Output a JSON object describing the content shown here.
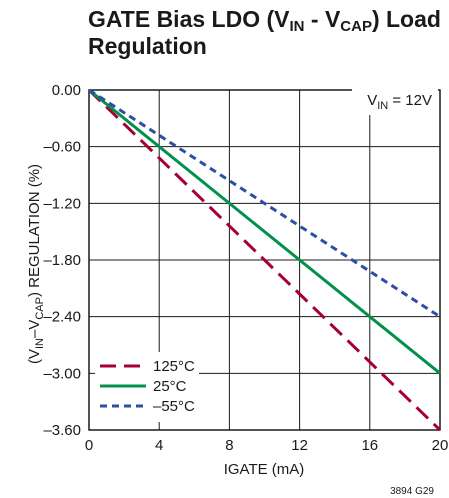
{
  "chart_data": {
    "type": "line",
    "title": {
      "pre": "GATE Bias LDO (V",
      "sub1": "IN",
      "mid": " - V",
      "sub2": "CAP",
      "post": ") Load",
      "line2": "Regulation"
    },
    "xlabel": "IGATE (mA)",
    "ylabel": {
      "pre": "(V",
      "sub1": "IN",
      "mid": "–V",
      "sub2": "CAP",
      "post": ") REGULATION (%)"
    },
    "xlim": [
      0,
      20
    ],
    "ylim": [
      -3.6,
      0
    ],
    "x_ticks": [
      0,
      4,
      8,
      12,
      16,
      20
    ],
    "x_tick_labels": [
      "0",
      "4",
      "8",
      "12",
      "16",
      "20"
    ],
    "y_ticks": [
      0,
      -0.6,
      -1.2,
      -1.8,
      -2.4,
      -3.0,
      -3.6
    ],
    "y_tick_labels": [
      "0.00",
      "–0.60",
      "–1.20",
      "–1.80",
      "–2.40",
      "–3.00",
      "–3.60"
    ],
    "grid": true,
    "legend_position": "bottom-left",
    "annotation": {
      "pre": "V",
      "sub": "IN",
      "post": " = 12V"
    },
    "part_note": "3894 G29",
    "series": [
      {
        "name": "125°C",
        "color": "#a50034",
        "dash": "long-dash",
        "x": [
          0,
          20
        ],
        "y": [
          0,
          -3.6
        ]
      },
      {
        "name": "25°C",
        "color": "#00914c",
        "dash": "solid",
        "x": [
          0,
          20
        ],
        "y": [
          0,
          -3.0
        ]
      },
      {
        "name": "–55°C",
        "color": "#2b4fa5",
        "dash": "short-dash",
        "x": [
          0,
          20
        ],
        "y": [
          0,
          -2.4
        ]
      }
    ]
  }
}
